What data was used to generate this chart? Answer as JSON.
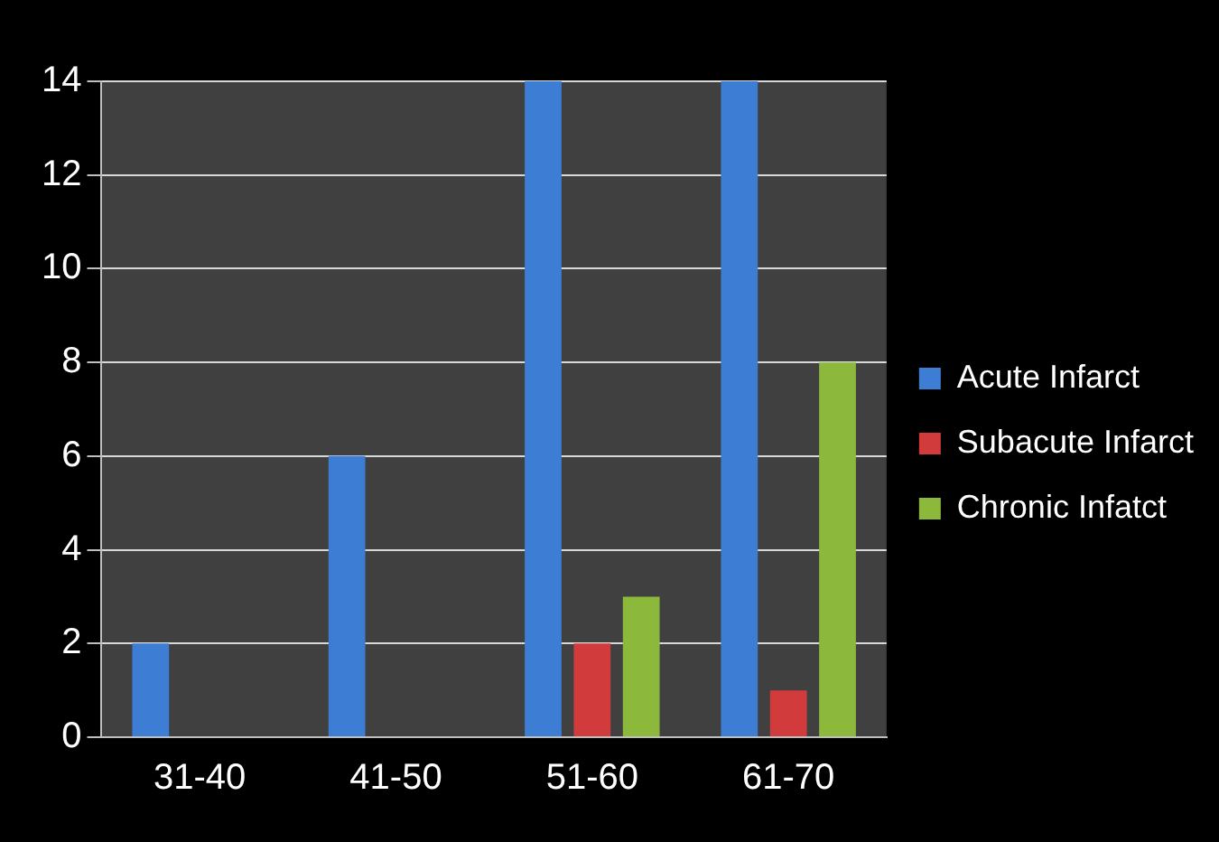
{
  "chart_data": {
    "type": "bar",
    "categories": [
      "31-40",
      "41-50",
      "51-60",
      "61-70"
    ],
    "series": [
      {
        "name": "Acute Infarct",
        "color": "#3d7dd4",
        "values": [
          2,
          6,
          14,
          14
        ]
      },
      {
        "name": "Subacute Infarct",
        "color": "#d23b3b",
        "values": [
          0,
          0,
          2,
          1
        ]
      },
      {
        "name": "Chronic Infatct",
        "color": "#8cb83c",
        "values": [
          0,
          0,
          3,
          8
        ]
      }
    ],
    "ylim": [
      0,
      14
    ],
    "yticks": [
      0,
      2,
      4,
      6,
      8,
      10,
      12,
      14
    ],
    "grid": "y",
    "legend": "right"
  }
}
